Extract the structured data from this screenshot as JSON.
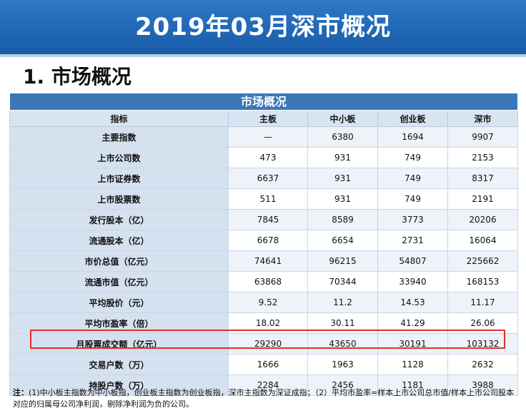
{
  "header": {
    "title": "2019年03月深市概况"
  },
  "section": {
    "heading": "1. 市场概况"
  },
  "table": {
    "title": "市场概况",
    "columns": [
      "指标",
      "主板",
      "中小板",
      "创业板",
      "深市"
    ],
    "rows": [
      {
        "label": "主要指数",
        "values": [
          "—",
          "6380",
          "1694",
          "9907"
        ]
      },
      {
        "label": "上市公司数",
        "values": [
          "473",
          "931",
          "749",
          "2153"
        ]
      },
      {
        "label": "上市证券数",
        "values": [
          "6637",
          "931",
          "749",
          "8317"
        ]
      },
      {
        "label": "上市股票数",
        "values": [
          "511",
          "931",
          "749",
          "2191"
        ]
      },
      {
        "label": "发行股本（亿）",
        "values": [
          "7845",
          "8589",
          "3773",
          "20206"
        ]
      },
      {
        "label": "流通股本（亿）",
        "values": [
          "6678",
          "6654",
          "2731",
          "16064"
        ]
      },
      {
        "label": "市价总值（亿元）",
        "values": [
          "74641",
          "96215",
          "54807",
          "225662"
        ]
      },
      {
        "label": "流通市值（亿元）",
        "values": [
          "63868",
          "70344",
          "33940",
          "168153"
        ]
      },
      {
        "label": "平均股价（元）",
        "values": [
          "9.52",
          "11.2",
          "14.53",
          "11.17"
        ]
      },
      {
        "label": "平均市盈率（倍）",
        "values": [
          "18.02",
          "30.11",
          "41.29",
          "26.06"
        ]
      },
      {
        "label": "月股票成交额（亿元）",
        "values": [
          "29290",
          "43650",
          "30191",
          "103132"
        ]
      },
      {
        "label": "交易户数（万）",
        "values": [
          "1666",
          "1963",
          "1128",
          "2632"
        ]
      },
      {
        "label": "持股户数（万）",
        "values": [
          "2284",
          "2456",
          "1181",
          "3988"
        ]
      }
    ]
  },
  "note": {
    "prefix": "注：",
    "text": "(1)中小板主指数为中小板指，创业板主指数为创业板指，深市主指数为深证成指；（2）平均市盈率=样本上市公司总市值/样本上市公司股本对应的归属母公司净利润，剔除净利润为负的公司。"
  },
  "colors": {
    "banner": "#1f66b4",
    "table_title": "#3b77b8",
    "header_row": "#d9e4f1",
    "highlight_border": "#e0302b"
  }
}
